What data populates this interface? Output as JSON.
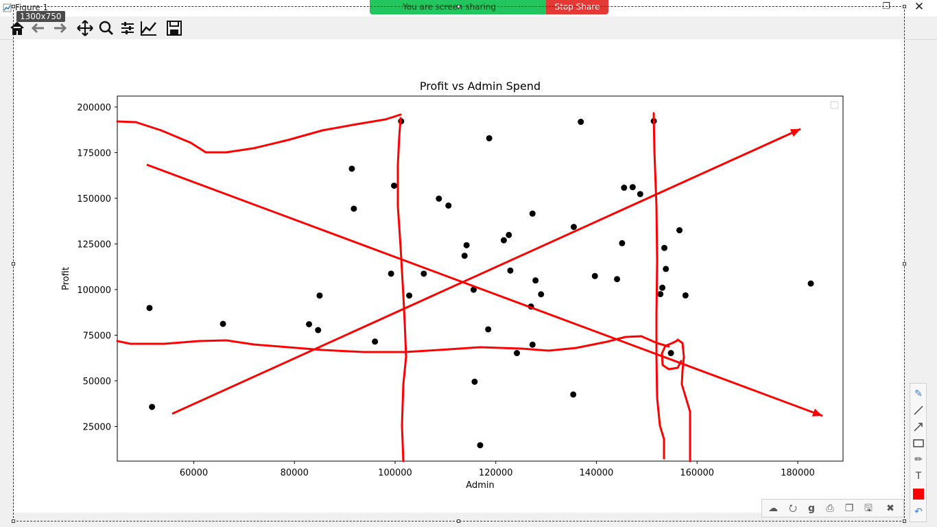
{
  "window": {
    "title": "Figure 1",
    "size_badge": "1300x750"
  },
  "screen_share": {
    "message": "You are screen sharing",
    "stop_label": "Stop Share"
  },
  "toolbar": {
    "buttons": [
      {
        "name": "home-icon"
      },
      {
        "name": "back-arrow-icon"
      },
      {
        "name": "forward-arrow-icon"
      },
      {
        "name": "pan-icon"
      },
      {
        "name": "zoom-icon"
      },
      {
        "name": "configure-subplots-icon"
      },
      {
        "name": "edit-axis-icon"
      },
      {
        "name": "save-icon"
      }
    ]
  },
  "drawing_palette": {
    "tools": [
      "pen-icon",
      "line-icon",
      "arrow-icon",
      "rectangle-icon",
      "highlighter-icon",
      "text-icon",
      "color-swatch",
      "undo-icon"
    ],
    "text_tool_label": "T",
    "active_color": "#ff0000"
  },
  "share_tools": {
    "tools": [
      "cloud-upload-icon",
      "share-icon",
      "google-icon",
      "print-icon",
      "copy-icon",
      "save-icon",
      "close-icon"
    ]
  },
  "chart_data": {
    "type": "scatter",
    "title": "Profit vs Admin Spend",
    "xlabel": "Admin",
    "ylabel": "Profit",
    "xlim": [
      44800,
      189000
    ],
    "ylim": [
      6000,
      206000
    ],
    "xticks": [
      60000,
      80000,
      100000,
      120000,
      140000,
      160000,
      180000
    ],
    "yticks": [
      25000,
      50000,
      75000,
      100000,
      125000,
      150000,
      175000,
      200000
    ],
    "xtick_labels": [
      "60000",
      "80000",
      "100000",
      "120000",
      "140000",
      "160000",
      "180000"
    ],
    "ytick_labels": [
      "25000",
      "50000",
      "75000",
      "100000",
      "125000",
      "150000",
      "175000",
      "200000"
    ],
    "legend": "top-right, empty",
    "point_color": "#000000",
    "points": [
      [
        101200,
        192200
      ],
      [
        151400,
        192300
      ],
      [
        136900,
        191900
      ],
      [
        118700,
        182900
      ],
      [
        91400,
        166200
      ],
      [
        99800,
        156900
      ],
      [
        91800,
        144300
      ],
      [
        145500,
        155800
      ],
      [
        147200,
        156100
      ],
      [
        148700,
        152300
      ],
      [
        108700,
        149800
      ],
      [
        110600,
        146000
      ],
      [
        127300,
        141600
      ],
      [
        156500,
        132500
      ],
      [
        135500,
        134300
      ],
      [
        122600,
        129900
      ],
      [
        121600,
        127000
      ],
      [
        153500,
        122800
      ],
      [
        145100,
        125400
      ],
      [
        114200,
        124300
      ],
      [
        113800,
        118500
      ],
      [
        153800,
        111300
      ],
      [
        99200,
        108700
      ],
      [
        105700,
        108700
      ],
      [
        122900,
        110400
      ],
      [
        139700,
        107400
      ],
      [
        144100,
        105700
      ],
      [
        127900,
        105000
      ],
      [
        182600,
        103300
      ],
      [
        153100,
        101000
      ],
      [
        115600,
        99900
      ],
      [
        152700,
        97500
      ],
      [
        129000,
        97400
      ],
      [
        157700,
        96800
      ],
      [
        85000,
        96700
      ],
      [
        102800,
        96700
      ],
      [
        127000,
        90700
      ],
      [
        51200,
        89900
      ],
      [
        65800,
        81200
      ],
      [
        82900,
        81000
      ],
      [
        84700,
        77800
      ],
      [
        118500,
        78200
      ],
      [
        96000,
        71500
      ],
      [
        127300,
        69800
      ],
      [
        124200,
        65200
      ],
      [
        154800,
        65200
      ],
      [
        115800,
        49500
      ],
      [
        135400,
        42500
      ],
      [
        51700,
        35700
      ],
      [
        116900,
        14700
      ]
    ],
    "annotations": {
      "color": "#ff0000",
      "description": "red freehand strokes and arrows drawn over the plot"
    }
  }
}
